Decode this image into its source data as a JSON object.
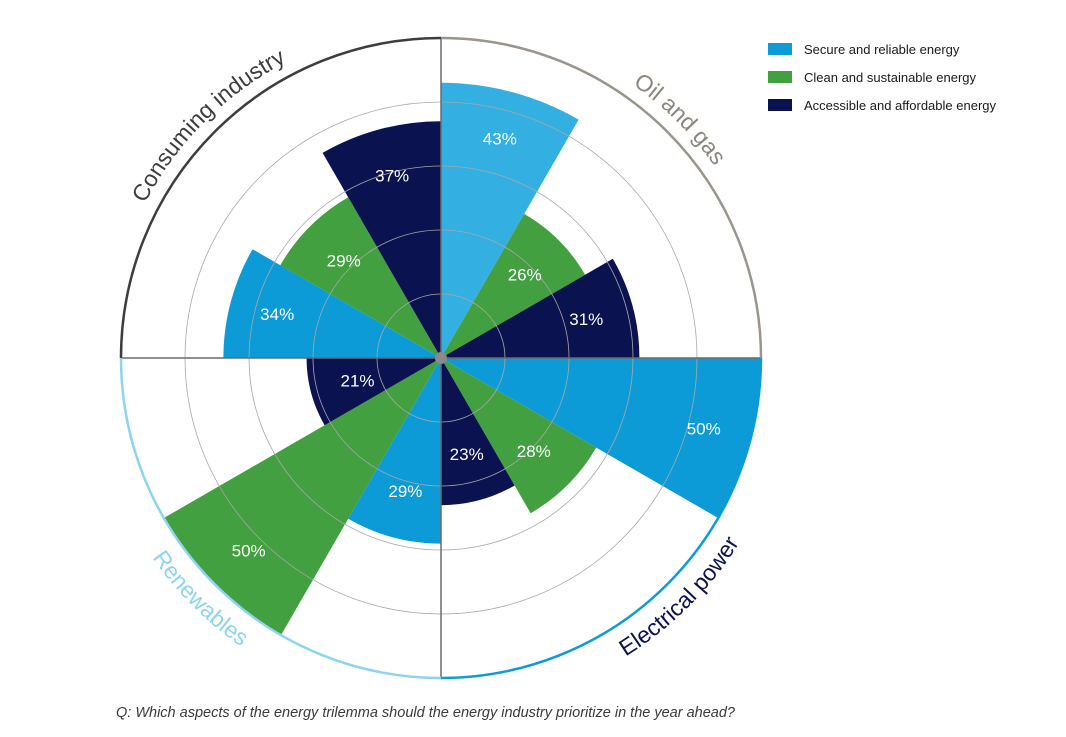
{
  "chart_data": {
    "type": "polar-bar",
    "title": "",
    "max_value": 50,
    "rings": 5,
    "series": [
      {
        "name": "Secure and reliable energy",
        "color": "#0c9bd6"
      },
      {
        "name": "Clean and sustainable energy",
        "color": "#42a040"
      },
      {
        "name": "Accessible and affordable energy",
        "color": "#0a1250"
      }
    ],
    "sectors": [
      {
        "name": "Oil and gas",
        "border_color": "#9b948d",
        "text_color": "#8c857e",
        "values": [
          {
            "series": "Secure and reliable energy",
            "value": 43,
            "label": "43%",
            "color": "#34afe1"
          },
          {
            "series": "Clean and sustainable energy",
            "value": 26,
            "label": "26%"
          },
          {
            "series": "Accessible and affordable energy",
            "value": 31,
            "label": "31%"
          }
        ]
      },
      {
        "name": "Electrical power",
        "border_color": "#0c9bd6",
        "text_color": "#0a1250",
        "values": [
          {
            "series": "Secure and reliable energy",
            "value": 50,
            "label": "50%"
          },
          {
            "series": "Clean and sustainable energy",
            "value": 28,
            "label": "28%"
          },
          {
            "series": "Accessible and affordable energy",
            "value": 23,
            "label": "23%"
          }
        ]
      },
      {
        "name": "Renewables",
        "border_color": "#8fd3ee",
        "text_color": "#8fd3ee",
        "values": [
          {
            "series": "Secure and reliable energy",
            "value": 29,
            "label": "29%"
          },
          {
            "series": "Clean and sustainable energy",
            "value": 50,
            "label": "50%"
          },
          {
            "series": "Accessible and affordable energy",
            "value": 21,
            "label": "21%"
          }
        ]
      },
      {
        "name": "Consuming industry",
        "border_color": "#3d3d3d",
        "text_color": "#3d3d3d",
        "values": [
          {
            "series": "Secure and reliable energy",
            "value": 34,
            "label": "34%"
          },
          {
            "series": "Clean and sustainable energy",
            "value": 29,
            "label": "29%"
          },
          {
            "series": "Accessible and affordable energy",
            "value": 37,
            "label": "37%"
          }
        ]
      }
    ],
    "legend_position": "top-right"
  },
  "question": "Q: Which aspects of the energy trilemma should the energy industry prioritize in the year ahead?"
}
